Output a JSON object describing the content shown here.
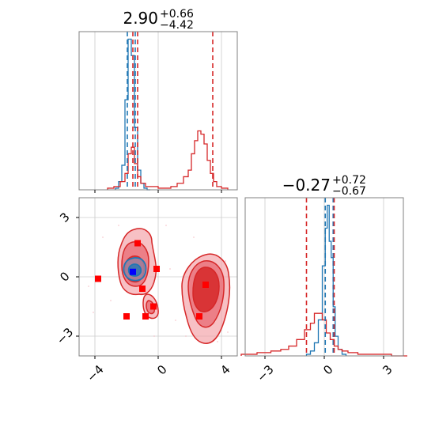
{
  "chart_data": [
    {
      "type": "histogram",
      "panel": "top-left",
      "title": {
        "value": "2.90",
        "plus": "+0.66",
        "minus": "−4.42"
      },
      "xlim": [
        -5,
        5
      ],
      "grid": true,
      "series": [
        {
          "color": "#1f77b4",
          "x": [
            -2.6,
            -2.4,
            -2.2,
            -2.0,
            -1.8,
            -1.6,
            -1.4,
            -1.2,
            -1.0,
            -0.8,
            -0.6
          ],
          "y": [
            0.01,
            0.05,
            0.15,
            0.55,
            0.92,
            0.82,
            0.38,
            0.12,
            0.04,
            0.01,
            0.0
          ]
        },
        {
          "color": "#d62728",
          "x": [
            -3.0,
            -2.6,
            -2.2,
            -2.0,
            -1.8,
            -1.6,
            -1.4,
            -1.2,
            -1.0,
            -0.6,
            -0.2,
            0.2,
            0.6,
            1.0,
            1.4,
            1.8,
            2.0,
            2.2,
            2.4,
            2.6,
            2.8,
            3.0,
            3.2,
            3.4,
            3.6,
            3.8,
            4.2
          ],
          "y": [
            0.01,
            0.02,
            0.05,
            0.1,
            0.22,
            0.26,
            0.16,
            0.08,
            0.04,
            0.02,
            0.02,
            0.01,
            0.01,
            0.02,
            0.04,
            0.08,
            0.12,
            0.22,
            0.3,
            0.36,
            0.34,
            0.28,
            0.18,
            0.1,
            0.05,
            0.02,
            0.01
          ]
        }
      ],
      "vlines": [
        {
          "x": -1.95,
          "color": "#1f77b4"
        },
        {
          "x": -1.45,
          "color": "#1f77b4"
        },
        {
          "x": -1.3,
          "color": "#d62728"
        },
        {
          "x": -1.6,
          "color": "#d62728"
        },
        {
          "x": 3.45,
          "color": "#d62728"
        }
      ],
      "xticks": [
        -4,
        0,
        4
      ]
    },
    {
      "type": "scatter",
      "panel": "bottom-left",
      "xlim": [
        -5,
        5
      ],
      "ylim": [
        -4,
        4
      ],
      "grid": true,
      "xticks": [
        -4,
        0,
        4
      ],
      "yticks": [
        -3,
        0,
        3
      ],
      "xtick_labels": [
        "−4",
        "0",
        "4"
      ],
      "ytick_labels": [
        "−3",
        "0",
        "3"
      ],
      "contour_color": "#d62728",
      "contour_color_2": "#1f77b4",
      "red_markers": [
        {
          "x": -3.8,
          "y": -0.1
        },
        {
          "x": -1.3,
          "y": 1.7
        },
        {
          "x": -0.1,
          "y": 0.4
        },
        {
          "x": -1.0,
          "y": -0.6
        },
        {
          "x": -0.3,
          "y": -1.5
        },
        {
          "x": -2.0,
          "y": -2.0
        },
        {
          "x": -0.8,
          "y": -2.0
        },
        {
          "x": 2.6,
          "y": -2.0
        },
        {
          "x": 3.0,
          "y": -0.4
        }
      ],
      "blue_marker": {
        "x": -1.6,
        "y": 0.25
      }
    },
    {
      "type": "histogram",
      "panel": "bottom-right",
      "title": {
        "value": "−0.27",
        "plus": "+0.72",
        "minus": "−0.67"
      },
      "xlim": [
        -4,
        4
      ],
      "xticks": [
        -3,
        0,
        3
      ],
      "xtick_labels": [
        "−3",
        "0",
        "3"
      ],
      "grid": true,
      "series": [
        {
          "color": "#1f77b4",
          "x": [
            -0.8,
            -0.6,
            -0.4,
            -0.2,
            0.0,
            0.1,
            0.2,
            0.3,
            0.4,
            0.5,
            0.6,
            0.8,
            1.0
          ],
          "y": [
            0.01,
            0.03,
            0.08,
            0.22,
            0.55,
            0.78,
            0.92,
            0.7,
            0.6,
            0.3,
            0.12,
            0.04,
            0.01
          ]
        },
        {
          "color": "#d62728",
          "x": [
            -3.8,
            -3.0,
            -2.4,
            -2.0,
            -1.6,
            -1.2,
            -0.8,
            -0.6,
            -0.4,
            -0.2,
            0.0,
            0.2,
            0.4,
            0.6,
            0.8,
            1.0,
            1.4,
            2.0,
            3.0,
            3.8
          ],
          "y": [
            0.01,
            0.02,
            0.03,
            0.04,
            0.06,
            0.1,
            0.16,
            0.2,
            0.26,
            0.26,
            0.22,
            0.14,
            0.1,
            0.06,
            0.04,
            0.03,
            0.02,
            0.01,
            0.01,
            0.0
          ]
        }
      ],
      "vlines": [
        {
          "x": -0.9,
          "color": "#d62728"
        },
        {
          "x": 0.05,
          "color": "#1f77b4"
        },
        {
          "x": 0.45,
          "color": "#1f77b4"
        },
        {
          "x": 0.5,
          "color": "#d62728"
        }
      ]
    }
  ]
}
